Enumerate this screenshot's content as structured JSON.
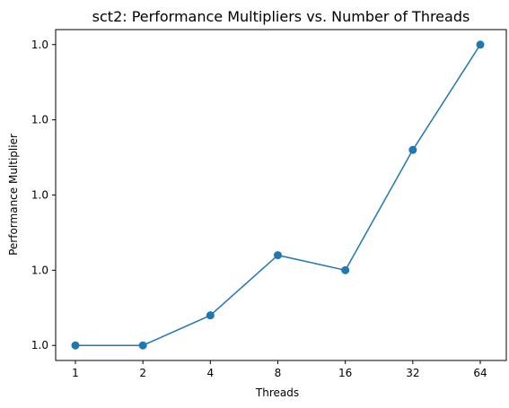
{
  "chart_data": {
    "type": "line",
    "title": "sct2: Performance Multipliers vs. Number of Threads",
    "xlabel": "Threads",
    "ylabel": "Performance Multiplier",
    "categories": [
      "1",
      "2",
      "4",
      "8",
      "16",
      "32",
      "64"
    ],
    "y_tick_labels": [
      "1.0",
      "1.0",
      "1.0",
      "1.0",
      "1.0"
    ],
    "series": [
      {
        "values": [
          1.0,
          1.0,
          1.00004,
          1.00012,
          1.0001,
          1.00026,
          1.0004
        ],
        "color": "#1f77b4",
        "marker": "circle"
      }
    ],
    "ylim": [
      0.99998,
      1.00042
    ],
    "grid": false,
    "legend": "none"
  }
}
